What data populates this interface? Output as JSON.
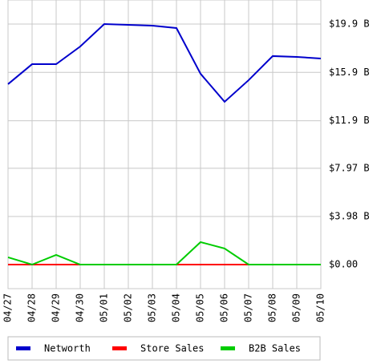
{
  "chart_data": {
    "type": "line",
    "categories": [
      "04/27",
      "04/28",
      "04/29",
      "04/30",
      "05/01",
      "05/02",
      "05/03",
      "05/04",
      "05/05",
      "05/06",
      "05/07",
      "05/08",
      "05/09",
      "05/10"
    ],
    "series": [
      {
        "name": "Networth",
        "color": "#0000cc",
        "values": [
          14.93,
          16.58,
          16.58,
          18.04,
          19.9,
          19.83,
          19.77,
          19.57,
          15.79,
          13.47,
          15.26,
          17.25,
          17.18,
          17.05
        ]
      },
      {
        "name": "Store Sales",
        "color": "#ff0000",
        "values": [
          0,
          0,
          0,
          0,
          0,
          0,
          0,
          0,
          0,
          0,
          0,
          0,
          0,
          0
        ]
      },
      {
        "name": "B2B Sales",
        "color": "#00cc00",
        "values": [
          0.6,
          0,
          0.8,
          0,
          0,
          0,
          0,
          0,
          1.86,
          1.33,
          0,
          0,
          0,
          0
        ]
      }
    ],
    "ylim": [
      -1.99,
      21.89
    ],
    "yticks": [
      {
        "value": 0,
        "label": "$0.00"
      },
      {
        "value": 3.98,
        "label": "$3.98 B"
      },
      {
        "value": 7.97,
        "label": "$7.97 B"
      },
      {
        "value": 11.9,
        "label": "$11.9 B"
      },
      {
        "value": 15.9,
        "label": "$15.9 B"
      },
      {
        "value": 19.9,
        "label": "$19.9 B"
      }
    ],
    "grid": true,
    "legend": "bottom"
  }
}
